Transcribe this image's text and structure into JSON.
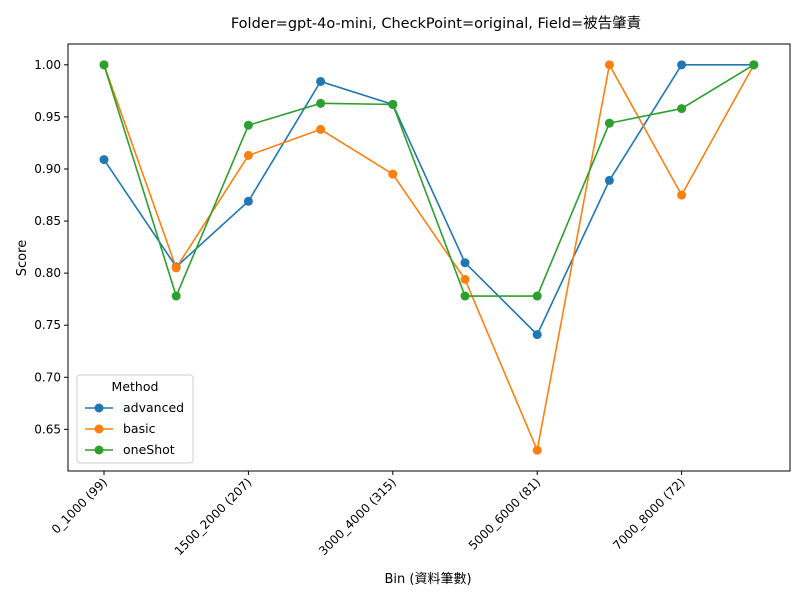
{
  "chart_data": {
    "type": "line",
    "title": "Folder=gpt-4o-mini, CheckPoint=original, Field=被告肇責",
    "xlabel": "Bin (資料筆數)",
    "ylabel": "Score",
    "categories": [
      "0_1000 (99)",
      "",
      "1500_2000 (207)",
      "",
      "3000_4000 (315)",
      "",
      "5000_6000 (81)",
      "",
      "7000_8000 (72)",
      ""
    ],
    "xtick_labels": [
      "0_1000 (99)",
      "1500_2000 (207)",
      "3000_4000 (315)",
      "5000_6000 (81)",
      "7000_8000 (72)"
    ],
    "ylim": [
      0.61,
      1.02
    ],
    "yticks": [
      0.65,
      0.7,
      0.75,
      0.8,
      0.85,
      0.9,
      0.95,
      1.0
    ],
    "ytick_labels": [
      "0.65",
      "0.70",
      "0.75",
      "0.80",
      "0.85",
      "0.90",
      "0.95",
      "1.00"
    ],
    "grid": false,
    "legend": {
      "title": "Method",
      "placement": "lower-left"
    },
    "series": [
      {
        "name": "advanced",
        "color": "#1f77b4",
        "values": [
          0.909,
          0.806,
          0.869,
          0.984,
          0.962,
          0.81,
          0.741,
          0.889,
          1.0,
          1.0
        ]
      },
      {
        "name": "basic",
        "color": "#ff7f0e",
        "values": [
          1.0,
          0.805,
          0.913,
          0.938,
          0.895,
          0.794,
          0.63,
          1.0,
          0.875,
          1.0
        ]
      },
      {
        "name": "oneShot",
        "color": "#2ca02c",
        "values": [
          1.0,
          0.778,
          0.942,
          0.963,
          0.962,
          0.778,
          0.778,
          0.944,
          0.958,
          1.0
        ]
      }
    ]
  }
}
